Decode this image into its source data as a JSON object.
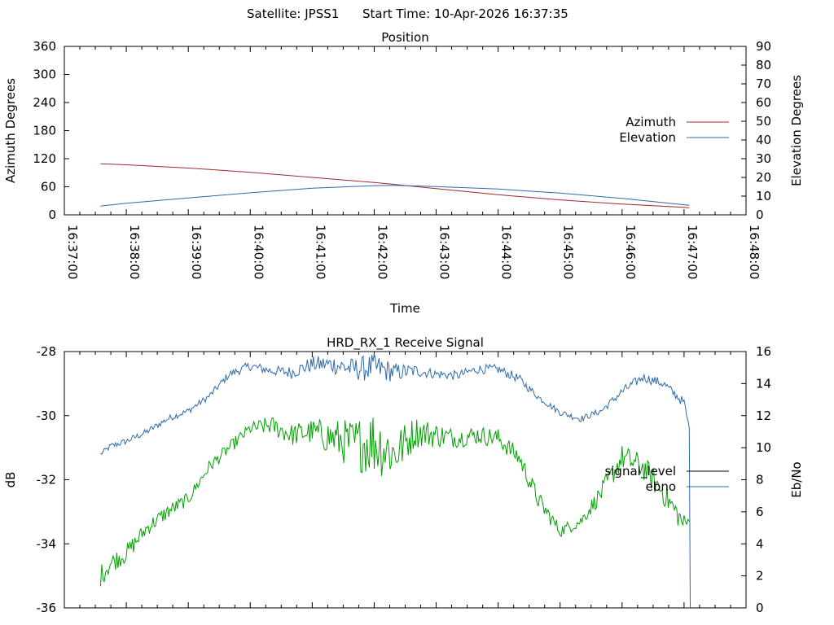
{
  "header": {
    "satellite": "Satellite: JPSS1",
    "start_time": "Start Time: 10-Apr-2026 16:37:35"
  },
  "chart_data": [
    {
      "type": "line",
      "title": "Position",
      "xlabel": "Time",
      "ylabel": "Azimuth Degrees",
      "y2label": "Elevation Degrees",
      "x_ticks": [
        "16:37:00",
        "16:38:00",
        "16:39:00",
        "16:40:00",
        "16:41:00",
        "16:42:00",
        "16:43:00",
        "16:44:00",
        "16:45:00",
        "16:46:00",
        "16:47:00",
        "16:48:00"
      ],
      "xlim": [
        "16:37:00",
        "16:48:00"
      ],
      "ylim": [
        0,
        360
      ],
      "y2lim": [
        0,
        90
      ],
      "y_ticks": [
        0,
        60,
        120,
        180,
        240,
        300,
        360
      ],
      "y2_ticks": [
        0,
        10,
        20,
        30,
        40,
        50,
        60,
        70,
        80,
        90
      ],
      "legend_position": "right",
      "series": [
        {
          "name": "Azimuth",
          "axis": "y",
          "color": "#a0282a",
          "x": [
            "16:37:35",
            "16:38:00",
            "16:39:00",
            "16:40:00",
            "16:41:00",
            "16:42:00",
            "16:42:20",
            "16:43:00",
            "16:44:00",
            "16:45:00",
            "16:46:00",
            "16:47:00",
            "16:47:05"
          ],
          "values": [
            109,
            107,
            100,
            91,
            80,
            69,
            65,
            56,
            43,
            32,
            23,
            16,
            15
          ]
        },
        {
          "name": "Elevation",
          "axis": "y2",
          "color": "#2f6aa8",
          "x": [
            "16:37:35",
            "16:38:00",
            "16:39:00",
            "16:40:00",
            "16:41:00",
            "16:42:00",
            "16:42:20",
            "16:43:00",
            "16:44:00",
            "16:45:00",
            "16:46:00",
            "16:47:00",
            "16:47:05"
          ],
          "values": [
            4.7,
            6.2,
            9.0,
            11.8,
            14.2,
            15.6,
            15.8,
            15.1,
            13.8,
            11.6,
            8.8,
            5.4,
            5.1
          ]
        }
      ]
    },
    {
      "type": "line",
      "title": "HRD_RX_1 Receive Signal",
      "xlabel": "",
      "ylabel": "dB",
      "y2label": "Eb/No",
      "xlim": [
        "16:37:00",
        "16:48:00"
      ],
      "ylim": [
        -36,
        -28
      ],
      "y2lim": [
        0,
        16
      ],
      "y_ticks": [
        -36,
        -34,
        -32,
        -30,
        -28
      ],
      "y2_ticks": [
        0,
        2,
        4,
        6,
        8,
        10,
        12,
        14,
        16
      ],
      "legend_position": "right",
      "series": [
        {
          "name": "signal_level",
          "axis": "y",
          "color": "#000000",
          "legend_only": true,
          "x": [],
          "values": []
        },
        {
          "name": "ebno",
          "axis": "y2",
          "color": "#2f6aa8",
          "x": [
            "16:37:35",
            "16:37:45",
            "16:38:00",
            "16:38:20",
            "16:38:40",
            "16:39:00",
            "16:39:20",
            "16:39:40",
            "16:40:00",
            "16:40:20",
            "16:40:40",
            "16:41:00",
            "16:41:20",
            "16:41:40",
            "16:42:00",
            "16:42:20",
            "16:42:40",
            "16:43:00",
            "16:43:20",
            "16:43:40",
            "16:44:00",
            "16:44:20",
            "16:44:40",
            "16:45:00",
            "16:45:20",
            "16:45:40",
            "16:46:00",
            "16:46:20",
            "16:46:40",
            "16:47:00",
            "16:47:05",
            "16:47:06"
          ],
          "values": [
            9.6,
            10.1,
            10.4,
            11.0,
            11.8,
            12.3,
            13.2,
            14.6,
            15.1,
            14.8,
            14.7,
            15.2,
            15.2,
            14.9,
            15.0,
            14.7,
            14.8,
            14.6,
            14.5,
            14.9,
            14.9,
            14.3,
            13.1,
            12.2,
            11.8,
            12.3,
            13.5,
            14.4,
            14.0,
            12.8,
            11.2,
            0.0
          ],
          "jitter": [
            0.15,
            0.2,
            0.2,
            0.2,
            0.2,
            0.2,
            0.2,
            0.25,
            0.3,
            0.3,
            0.4,
            0.5,
            0.6,
            0.7,
            0.9,
            0.6,
            0.4,
            0.3,
            0.3,
            0.3,
            0.3,
            0.3,
            0.2,
            0.2,
            0.2,
            0.2,
            0.3,
            0.3,
            0.3,
            0.3,
            0.2,
            0.0
          ]
        },
        {
          "name": "",
          "axis": "y",
          "color": "#00a000",
          "show_in_legend": false,
          "x": [
            "16:37:35",
            "16:37:45",
            "16:38:00",
            "16:38:20",
            "16:38:40",
            "16:39:00",
            "16:39:20",
            "16:39:40",
            "16:40:00",
            "16:40:20",
            "16:40:40",
            "16:41:00",
            "16:41:20",
            "16:41:40",
            "16:42:00",
            "16:42:20",
            "16:42:40",
            "16:43:00",
            "16:43:20",
            "16:43:40",
            "16:44:00",
            "16:44:20",
            "16:44:40",
            "16:45:00",
            "16:45:20",
            "16:45:40",
            "16:46:00",
            "16:46:20",
            "16:46:40",
            "16:47:00",
            "16:47:05"
          ],
          "values": [
            -35.0,
            -34.6,
            -34.3,
            -33.5,
            -33.0,
            -32.6,
            -31.6,
            -31.0,
            -30.4,
            -30.3,
            -30.6,
            -30.5,
            -30.7,
            -30.9,
            -30.8,
            -31.2,
            -30.5,
            -30.6,
            -30.7,
            -30.6,
            -30.7,
            -31.3,
            -32.7,
            -33.6,
            -33.3,
            -32.4,
            -31.3,
            -31.6,
            -32.4,
            -33.4,
            -33.3
          ],
          "jitter": [
            0.35,
            0.3,
            0.3,
            0.25,
            0.25,
            0.2,
            0.2,
            0.2,
            0.2,
            0.3,
            0.35,
            0.4,
            0.6,
            0.8,
            1.1,
            0.8,
            0.5,
            0.4,
            0.3,
            0.3,
            0.3,
            0.3,
            0.3,
            0.2,
            0.2,
            0.3,
            0.4,
            0.4,
            0.4,
            0.35,
            0.25
          ]
        }
      ]
    }
  ]
}
